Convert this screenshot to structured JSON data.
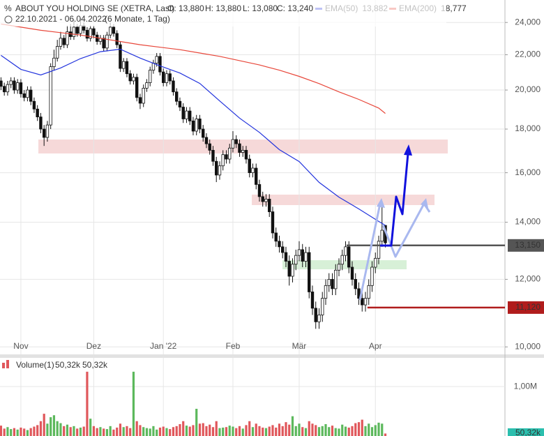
{
  "chart_data": [
    {
      "type": "candlestick",
      "title": "ABOUT YOU HOLDING SE (XETRA, Last)",
      "quote": [
        "O: 13,880",
        "H: 13,880",
        "L: 13,080",
        "C: 13,240"
      ],
      "subtitle": "22.10.2021 - 06.04.2022",
      "period": "(6 Monate, 1 Tag)",
      "log_scale": true,
      "grid": true,
      "up_color": "#ffffff",
      "down_color": "#111111",
      "xlim": [
        -0.3,
        152.1
      ],
      "xticks": [
        {
          "value": 6,
          "label": "Nov"
        },
        {
          "value": 28,
          "label": "Dez"
        },
        {
          "value": 49,
          "label": "Jan '22"
        },
        {
          "value": 70,
          "label": "Feb"
        },
        {
          "value": 90,
          "label": "Mär"
        },
        {
          "value": 113,
          "label": "Apr"
        }
      ],
      "ylim": [
        9800,
        25500
      ],
      "yticks": [
        {
          "value": 24000,
          "label": "24,000"
        },
        {
          "value": 22000,
          "label": "22,000"
        },
        {
          "value": 20000,
          "label": "20,000"
        },
        {
          "value": 18000,
          "label": "18,000"
        },
        {
          "value": 16000,
          "label": "16,000"
        },
        {
          "value": 14000,
          "label": "14,000"
        },
        {
          "value": 12000,
          "label": "12,000"
        },
        {
          "value": 10000,
          "label": "10,000"
        }
      ],
      "open": [
        20500,
        20200,
        19900,
        20300,
        20500,
        20000,
        20400,
        19800,
        19600,
        20000,
        19400,
        19000,
        18600,
        18000,
        17600,
        18200,
        21300,
        21800,
        22500,
        23000,
        22600,
        23400,
        23100,
        23700,
        23300,
        23800,
        23500,
        23000,
        23600,
        23200,
        22800,
        23000,
        22400,
        23200,
        23700,
        23300,
        22600,
        21200,
        21600,
        20900,
        20500,
        20700,
        19600,
        19300,
        20100,
        20400,
        21100,
        21500,
        21900,
        21000,
        20400,
        20900,
        20500,
        19900,
        19400,
        19100,
        18500,
        18900,
        18400,
        17900,
        18500,
        18000,
        17600,
        17300,
        17000,
        16500,
        15900,
        16300,
        16800,
        16600,
        17100,
        17500,
        17300,
        16900,
        17000,
        16600,
        16000,
        16200,
        15500,
        15000,
        14800,
        14900,
        14400,
        13600,
        13300,
        13100,
        12900,
        12600,
        12100,
        12500,
        12800,
        13000,
        12600,
        12900,
        11600,
        11100,
        10700,
        10900,
        11400,
        11800,
        12000,
        11700,
        12300,
        12500,
        12800,
        13100,
        12400,
        12000,
        11700,
        11400,
        11200,
        11400,
        11800,
        12400,
        12700,
        13300,
        13880
      ],
      "high": [
        20700,
        20400,
        20500,
        20700,
        20700,
        20600,
        20600,
        20000,
        20200,
        20200,
        19600,
        19200,
        18800,
        18200,
        18400,
        21500,
        22300,
        22900,
        23400,
        23200,
        23800,
        23900,
        24200,
        23900,
        24300,
        24000,
        23700,
        23800,
        23800,
        23400,
        23200,
        23200,
        23400,
        24000,
        23900,
        23500,
        22800,
        21800,
        21800,
        21100,
        20900,
        20900,
        19800,
        20300,
        20600,
        21300,
        21700,
        22100,
        22100,
        21200,
        21100,
        21100,
        20700,
        20100,
        19600,
        19300,
        19100,
        19100,
        18600,
        18700,
        18700,
        18200,
        17800,
        17500,
        17200,
        16700,
        16500,
        17000,
        17000,
        17300,
        17900,
        17700,
        17500,
        17200,
        17200,
        16800,
        16400,
        16400,
        15700,
        15200,
        15100,
        15100,
        14600,
        13800,
        13500,
        13300,
        13100,
        12800,
        12700,
        13000,
        13300,
        13200,
        13100,
        13100,
        11800,
        11300,
        11100,
        11600,
        12000,
        12200,
        12200,
        12500,
        12700,
        13000,
        13300,
        13300,
        12600,
        12200,
        11900,
        11600,
        11600,
        12000,
        12600,
        12900,
        13500,
        14700,
        13880
      ],
      "low": [
        20000,
        19700,
        19700,
        20100,
        19800,
        19800,
        19600,
        19400,
        19400,
        19200,
        18800,
        18400,
        17800,
        17200,
        17400,
        18000,
        21100,
        21600,
        22300,
        22400,
        22400,
        22900,
        22900,
        23100,
        23100,
        23300,
        22800,
        22800,
        23000,
        22600,
        22600,
        22200,
        22200,
        23000,
        23100,
        22400,
        21000,
        21000,
        20700,
        20300,
        20300,
        19400,
        19000,
        19100,
        19900,
        20200,
        20900,
        21300,
        20800,
        20200,
        20200,
        20300,
        19700,
        19200,
        18900,
        18300,
        18300,
        18200,
        17700,
        17700,
        17800,
        17400,
        17100,
        16800,
        16300,
        15600,
        15700,
        16100,
        16400,
        16400,
        16900,
        17100,
        16700,
        16700,
        16400,
        15800,
        15800,
        15300,
        14800,
        14600,
        14600,
        14200,
        13400,
        13100,
        12900,
        12700,
        12400,
        11800,
        11900,
        12300,
        12600,
        12400,
        12400,
        11400,
        10900,
        10500,
        10500,
        10700,
        11200,
        11600,
        11500,
        11500,
        12100,
        12300,
        12600,
        12200,
        11800,
        11500,
        11200,
        11000,
        11000,
        11200,
        11600,
        12200,
        12500,
        13100,
        13080
      ],
      "close": [
        20200,
        19900,
        20300,
        20500,
        20000,
        20400,
        19800,
        19600,
        20000,
        19400,
        19000,
        18600,
        18000,
        17600,
        18200,
        21300,
        21800,
        22500,
        23000,
        22600,
        23400,
        23100,
        23700,
        23300,
        23800,
        23500,
        23000,
        23600,
        23200,
        22800,
        23000,
        22400,
        23200,
        23700,
        23300,
        22600,
        21200,
        21600,
        20900,
        20500,
        20700,
        19600,
        19300,
        20100,
        20400,
        21100,
        21500,
        21900,
        21000,
        20400,
        20900,
        20500,
        19900,
        19400,
        19100,
        18500,
        18900,
        18400,
        17900,
        18500,
        18000,
        17600,
        17300,
        17000,
        16500,
        15900,
        16300,
        16800,
        16600,
        17100,
        17500,
        17300,
        16900,
        17000,
        16600,
        16000,
        16200,
        15500,
        15000,
        14800,
        14900,
        14400,
        13600,
        13300,
        13100,
        12900,
        12600,
        12100,
        12500,
        12800,
        13000,
        12600,
        12900,
        11600,
        11100,
        10700,
        10900,
        11400,
        11800,
        12000,
        11700,
        12300,
        12500,
        12800,
        13100,
        12400,
        12000,
        11700,
        11400,
        11200,
        11400,
        11800,
        12400,
        12700,
        13300,
        13700,
        13240
      ],
      "series": [
        {
          "name": "EMA(50)",
          "color": "#2233dd",
          "value_label": "13,882",
          "x": [
            0,
            6,
            12,
            18,
            24,
            30,
            36,
            42,
            48,
            54,
            60,
            66,
            72,
            78,
            84,
            90,
            96,
            102,
            108,
            114,
            116
          ],
          "values": [
            21960,
            21150,
            20830,
            21230,
            21770,
            22180,
            22330,
            21800,
            21350,
            20940,
            20360,
            19420,
            18540,
            17840,
            17030,
            16490,
            15590,
            14980,
            14510,
            14030,
            13882
          ]
        },
        {
          "name": "EMA(200)",
          "color": "#e8473a",
          "value_label": "18,777",
          "x": [
            0,
            6,
            12,
            18,
            24,
            30,
            36,
            42,
            48,
            54,
            60,
            66,
            72,
            78,
            84,
            90,
            96,
            102,
            108,
            114,
            116
          ],
          "values": [
            23900,
            23700,
            23500,
            23350,
            23200,
            23000,
            22800,
            22600,
            22450,
            22300,
            22100,
            21900,
            21650,
            21400,
            21100,
            20750,
            20350,
            19900,
            19500,
            19050,
            18777
          ]
        }
      ],
      "levels": [
        {
          "value": 13150,
          "label": "13,150",
          "color": "#555555",
          "x_start": 104.3
        },
        {
          "value": 11120,
          "label": "11,120",
          "color": "#b01c1c",
          "x_start": 110.6
        }
      ]
    },
    {
      "type": "bar",
      "title": "Volume(1)",
      "last_label": "50,32k",
      "up_color": "#5cb85c",
      "down_color": "#e0575b",
      "grid": true,
      "ylim": [
        0,
        1580000
      ],
      "yticks": [
        {
          "value": 1000000,
          "label": "1,00M"
        }
      ],
      "values": [
        210000,
        150000,
        180000,
        140000,
        160000,
        130000,
        170000,
        150000,
        120000,
        160000,
        190000,
        220000,
        300000,
        450000,
        250000,
        380000,
        420000,
        300000,
        260000,
        200000,
        230000,
        180000,
        200000,
        150000,
        170000,
        190000,
        1300000,
        350000,
        200000,
        160000,
        180000,
        150000,
        140000,
        200000,
        130000,
        170000,
        250000,
        180000,
        200000,
        160000,
        1300000,
        300000,
        220000,
        180000,
        160000,
        150000,
        200000,
        130000,
        170000,
        190000,
        160000,
        140000,
        180000,
        200000,
        240000,
        300000,
        210000,
        190000,
        220000,
        550000,
        250000,
        260000,
        200000,
        230000,
        180000,
        300000,
        160000,
        170000,
        180000,
        210000,
        190000,
        160000,
        200000,
        150000,
        220000,
        300000,
        180000,
        250000,
        200000,
        170000,
        160000,
        190000,
        220000,
        170000,
        250000,
        200000,
        280000,
        230000,
        400000,
        200000,
        250000,
        180000,
        160000,
        300000,
        250000,
        220000,
        180000,
        200000,
        240000,
        180000,
        210000,
        160000,
        150000,
        230000,
        190000,
        170000,
        200000,
        260000,
        280000,
        330000,
        200000,
        250000,
        180000,
        220000,
        270000,
        250000,
        50320
      ]
    }
  ]
}
